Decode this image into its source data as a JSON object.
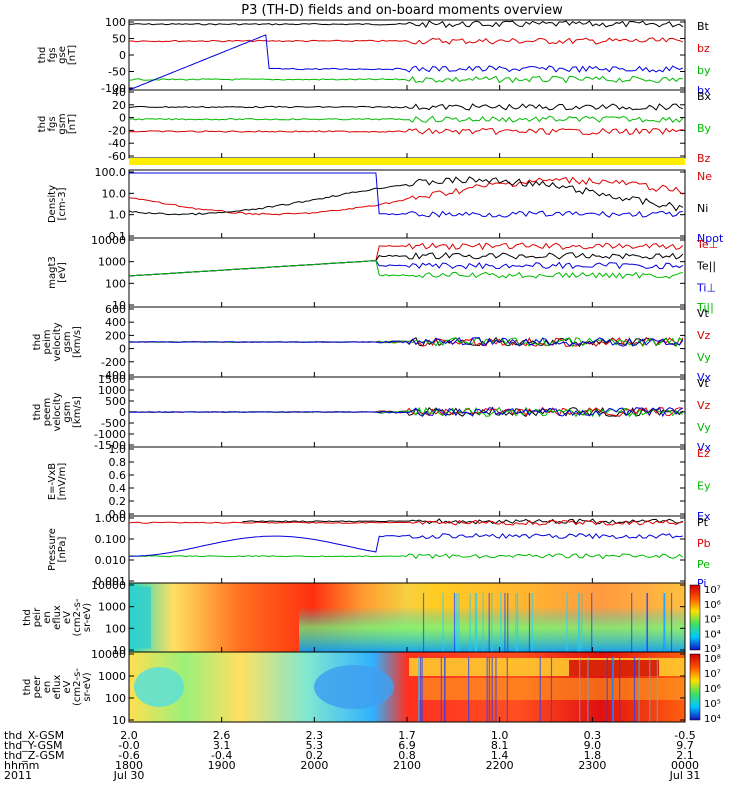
{
  "title": "P3 (TH-D) fields and on-board moments overview",
  "chart_data": {
    "type": "line",
    "title": "P3 (TH-D) fields and on-board moments overview",
    "panels": [
      {
        "id": "fgs-gse",
        "ylabel": [
          "thd",
          "fgs",
          "gse",
          "[nT]"
        ],
        "yticks": [
          "100",
          "50",
          "0",
          "-50",
          "-100"
        ],
        "ylim": [
          -100,
          100
        ],
        "legend": [
          {
            "label": "Bt",
            "color": "#000000"
          },
          {
            "label": "bz",
            "color": "#dd0000"
          },
          {
            "label": "by",
            "color": "#00bb00"
          },
          {
            "label": "bx",
            "color": "#0000dd"
          }
        ]
      },
      {
        "id": "fgs-gsm",
        "ylabel": [
          "thd",
          "fgs",
          "gsm",
          "[nT]"
        ],
        "yticks": [
          "40",
          "20",
          "0",
          "-20",
          "-40",
          "-60"
        ],
        "ylim": [
          -70,
          40
        ],
        "legend": [
          {
            "label": "Bx",
            "color": "#000000"
          },
          {
            "label": "By",
            "color": "#00bb00"
          },
          {
            "label": "Bz",
            "color": "#dd0000"
          }
        ]
      },
      {
        "id": "density",
        "ylabel": [
          "Density",
          "[cm-3]"
        ],
        "yticks": [
          "100.0",
          "10.0",
          "1.0",
          "0.1"
        ],
        "ylim": [
          0.1,
          100
        ],
        "legend": [
          {
            "label": "Ne",
            "color": "#dd0000"
          },
          {
            "label": "Ni",
            "color": "#000000"
          },
          {
            "label": "Npot",
            "color": "#0000dd"
          }
        ]
      },
      {
        "id": "temperature",
        "ylabel": [
          "magt3",
          "[eV]"
        ],
        "yticks": [
          "10000",
          "1000",
          "100",
          "10"
        ],
        "ylim": [
          1,
          10000
        ],
        "legend": [
          {
            "label": "Te⊥",
            "color": "#dd0000"
          },
          {
            "label": "Te||",
            "color": "#000000"
          },
          {
            "label": "Ti⊥",
            "color": "#0000dd"
          },
          {
            "label": "Ti||",
            "color": "#00bb00"
          }
        ]
      },
      {
        "id": "ion-velocity",
        "ylabel": [
          "thd",
          "peim",
          "velocity",
          "gsm",
          "[km/s]"
        ],
        "yticks": [
          "600",
          "400",
          "200",
          "0",
          "-200",
          "-400"
        ],
        "ylim": [
          -400,
          600
        ],
        "legend": [
          {
            "label": "Vt",
            "color": "#000000"
          },
          {
            "label": "Vz",
            "color": "#dd0000"
          },
          {
            "label": "Vy",
            "color": "#00bb00"
          },
          {
            "label": "Vx",
            "color": "#0000dd"
          }
        ]
      },
      {
        "id": "electron-velocity",
        "ylabel": [
          "thd",
          "peem",
          "velocity",
          "gsm",
          "[km/s]"
        ],
        "yticks": [
          "1500",
          "1000",
          "500",
          "0",
          "-500",
          "-1000",
          "-1500"
        ],
        "ylim": [
          -1500,
          1500
        ],
        "legend": [
          {
            "label": "Vt",
            "color": "#000000"
          },
          {
            "label": "Vz",
            "color": "#dd0000"
          },
          {
            "label": "Vy",
            "color": "#00bb00"
          },
          {
            "label": "Vx",
            "color": "#0000dd"
          }
        ]
      },
      {
        "id": "efield",
        "ylabel": [
          "E=-VxB",
          "[mV/m]"
        ],
        "yticks": [
          "1.0",
          "0.8",
          "0.6",
          "0.4",
          "0.2",
          "0.0"
        ],
        "ylim": [
          0,
          1
        ],
        "legend": [
          {
            "label": "Ez",
            "color": "#dd0000"
          },
          {
            "label": "Ey",
            "color": "#00bb00"
          },
          {
            "label": "Ex",
            "color": "#0000dd"
          }
        ]
      },
      {
        "id": "pressure",
        "ylabel": [
          "Pressure",
          "[nPa]"
        ],
        "yticks": [
          "1.000",
          "0.100",
          "0.010",
          "0.001"
        ],
        "ylim": [
          0.001,
          10
        ],
        "legend": [
          {
            "label": "Pt",
            "color": "#000000"
          },
          {
            "label": "Pb",
            "color": "#dd0000"
          },
          {
            "label": "Pe",
            "color": "#00bb00"
          },
          {
            "label": "Pi",
            "color": "#0000dd"
          }
        ]
      },
      {
        "id": "ion-spectrogram",
        "ylabel": [
          "thd",
          "peir",
          "en",
          "eflux",
          "eV",
          "(cm2-s-",
          "sr-eV)"
        ],
        "yticks": [
          "10000",
          "1000",
          "100",
          "10"
        ],
        "colorbar": [
          "10⁷",
          "10⁶",
          "10⁵",
          "10⁴",
          "10³"
        ]
      },
      {
        "id": "electron-spectrogram",
        "ylabel": [
          "thd",
          "peer",
          "en",
          "eflux",
          "eV",
          "(cm2-s-",
          "sr-eV)"
        ],
        "yticks": [
          "10000",
          "1000",
          "100",
          "10"
        ],
        "colorbar": [
          "10⁸",
          "10⁷",
          "10⁶",
          "10⁵",
          "10⁴"
        ]
      }
    ],
    "xaxis": {
      "row_labels": [
        "thd_X-GSM",
        "thd_Y-GSM",
        "thd_Z-GSM",
        "hhmm",
        "2011"
      ],
      "ticks": [
        {
          "x": "2.0",
          "y": "-0.0",
          "z": "-0.6",
          "time": "1800"
        },
        {
          "x": "2.6",
          "y": "3.1",
          "z": "-0.4",
          "time": "1900"
        },
        {
          "x": "2.3",
          "y": "5.3",
          "z": "0.2",
          "time": "2000"
        },
        {
          "x": "1.7",
          "y": "6.9",
          "z": "0.8",
          "time": "2100"
        },
        {
          "x": "1.0",
          "y": "8.1",
          "z": "1.4",
          "time": "2200"
        },
        {
          "x": "0.3",
          "y": "9.0",
          "z": "1.8",
          "time": "2300"
        },
        {
          "x": "-0.5",
          "y": "9.7",
          "z": "2.1",
          "time": "0000"
        }
      ],
      "date_start": "Jul 30",
      "date_end": "Jul 31"
    }
  }
}
